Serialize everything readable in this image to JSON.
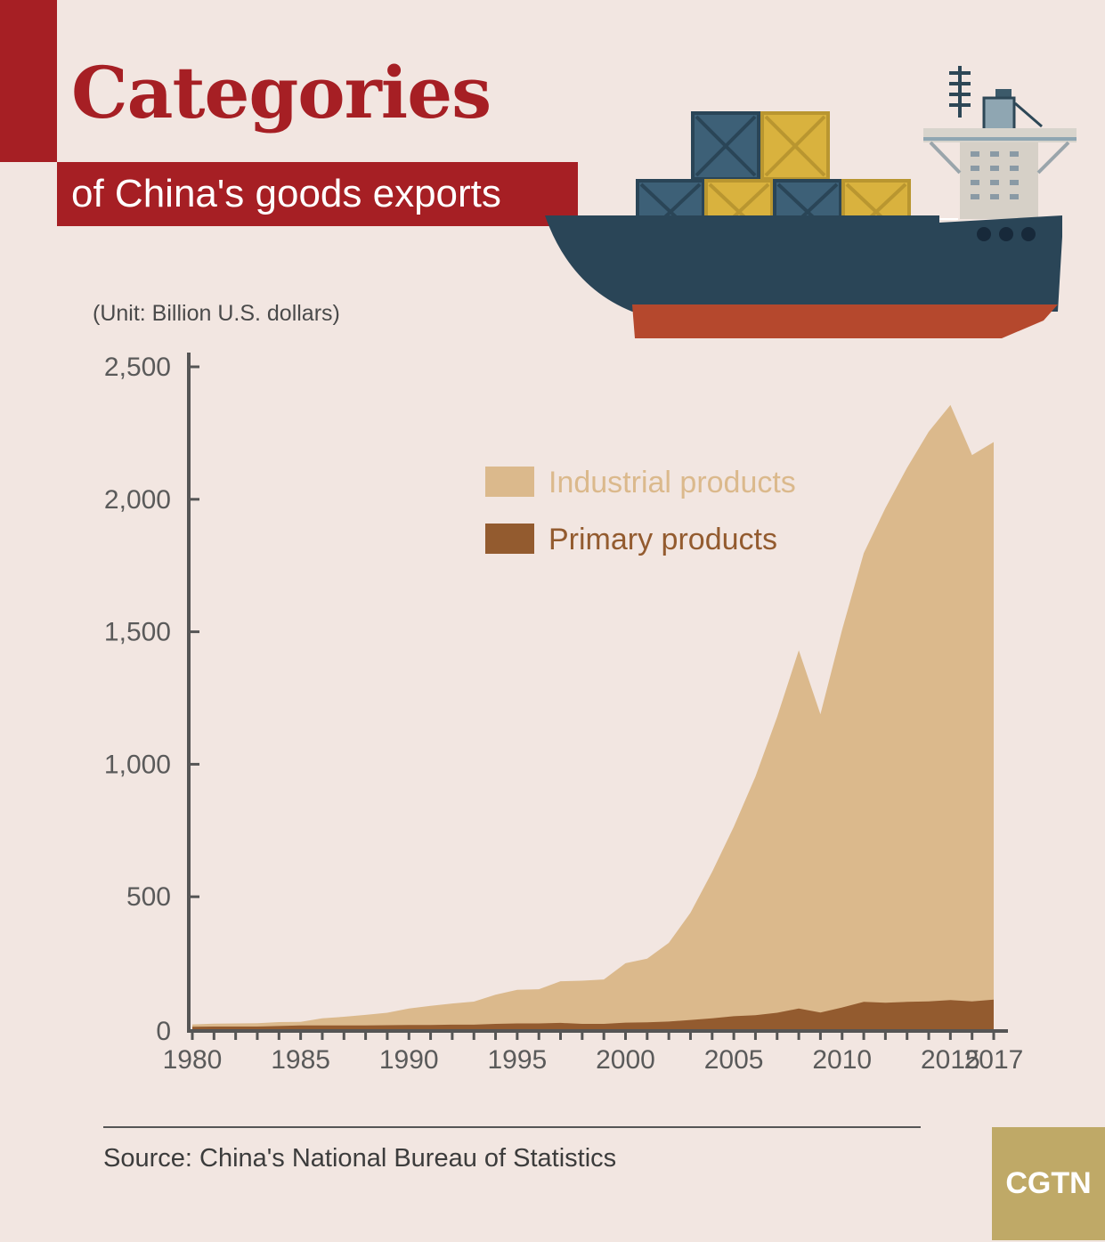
{
  "header": {
    "title": "Categories",
    "subtitle": "of China's goods exports",
    "unit": "(Unit: Billion U.S. dollars)"
  },
  "colors": {
    "accent": "#a61f24",
    "industrial": "#dbb98c",
    "primary": "#935b2f",
    "axis": "#555555",
    "logo": "#bfa967"
  },
  "footer": {
    "source": "Source: China's National Bureau of Statistics",
    "logo_text": "CGTN"
  },
  "chart_data": {
    "type": "area",
    "stacked": true,
    "x": [
      1980,
      1981,
      1982,
      1983,
      1984,
      1985,
      1986,
      1987,
      1988,
      1989,
      1990,
      1991,
      1992,
      1993,
      1994,
      1995,
      1996,
      1997,
      1998,
      1999,
      2000,
      2001,
      2002,
      2003,
      2004,
      2005,
      2006,
      2007,
      2008,
      2009,
      2010,
      2011,
      2012,
      2013,
      2014,
      2015,
      2016,
      2017
    ],
    "series": [
      {
        "name": "Industrial products",
        "color": "#dbb98c",
        "values": [
          9,
          11,
          12,
          13,
          15,
          14,
          27,
          33,
          40,
          47,
          62,
          72,
          80,
          87,
          110,
          127,
          129,
          157,
          163,
          168,
          224,
          240,
          297,
          405,
          553,
          715,
          900,
          1117,
          1352,
          1126,
          1425,
          1694,
          1867,
          2016,
          2150,
          2246,
          2062,
          2104
        ]
      },
      {
        "name": "Primary products",
        "color": "#935b2f",
        "values": [
          9,
          10,
          10,
          10,
          12,
          14,
          14,
          14,
          14,
          15,
          16,
          16,
          17,
          17,
          20,
          22,
          22,
          24,
          20,
          20,
          25,
          26,
          29,
          35,
          41,
          49,
          53,
          62,
          78,
          63,
          82,
          103,
          100,
          103,
          105,
          110,
          105,
          112
        ]
      }
    ],
    "xticks": [
      "1980",
      "1985",
      "1990",
      "1995",
      "2000",
      "2005",
      "2010",
      "2015",
      "2017"
    ],
    "yticks": [
      "0",
      "500",
      "1,000",
      "1,500",
      "2,000",
      "2,500"
    ],
    "ylim": [
      0,
      2500
    ],
    "legend": "upper-center",
    "grid": false
  }
}
